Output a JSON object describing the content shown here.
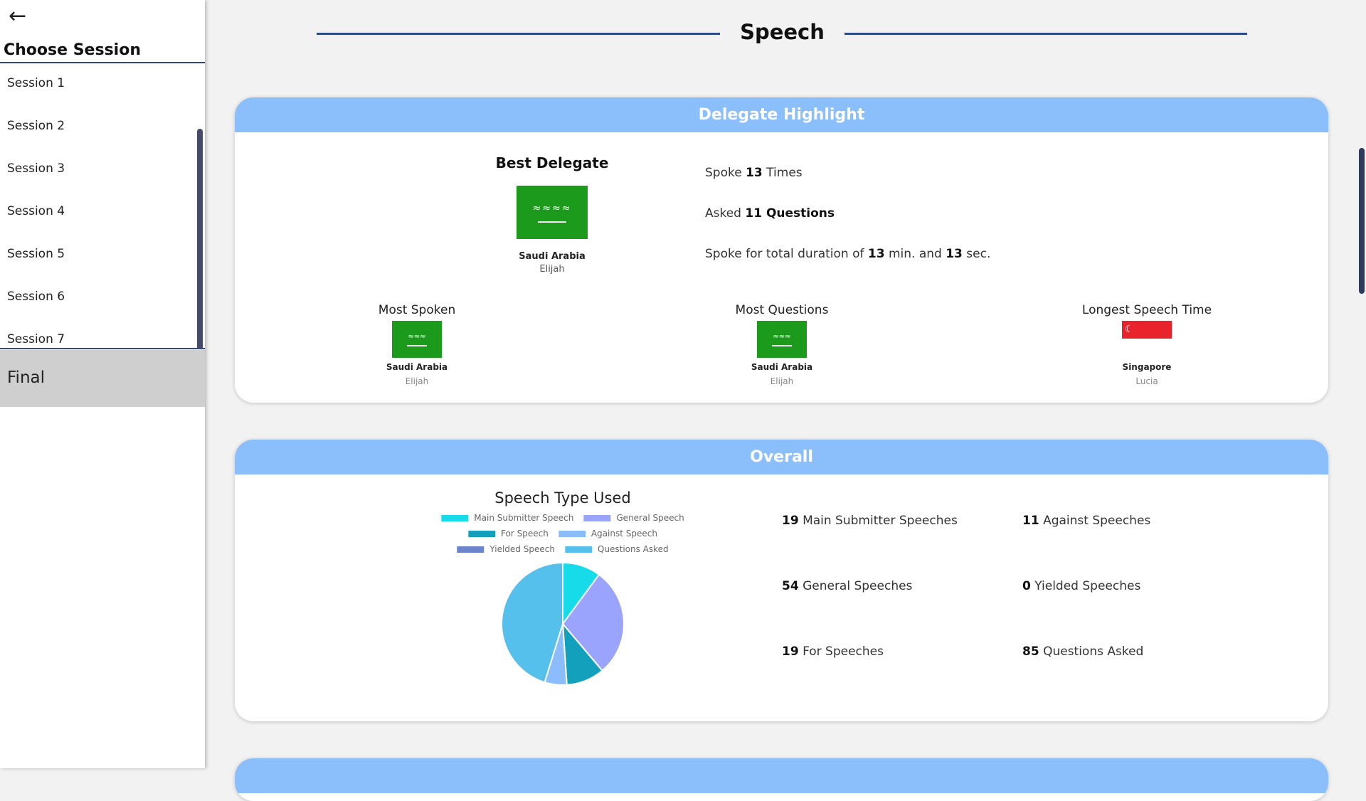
{
  "sidebar": {
    "back_icon": "arrow-left-icon",
    "heading": "Choose Session",
    "sessions": [
      "Session 1",
      "Session 2",
      "Session 3",
      "Session 4",
      "Session 5",
      "Session 6",
      "Session 7"
    ],
    "selected": "Final"
  },
  "page": {
    "title": "Speech"
  },
  "highlight": {
    "header": "Delegate Highlight",
    "best": {
      "label": "Best Delegate",
      "country": "Saudi Arabia",
      "delegate": "Elijah"
    },
    "stats": {
      "spoke_pre": "Spoke ",
      "spoke_n": "13",
      "spoke_post": " Times",
      "asked_pre": "Asked ",
      "asked_n": "11 Questions",
      "dur_pre": "Spoke for total duration of ",
      "dur_min": "13",
      "dur_mid": " min. and ",
      "dur_sec": "13",
      "dur_post": " sec."
    },
    "awards": [
      {
        "label": "Most Spoken",
        "country": "Saudi Arabia",
        "delegate": "Elijah"
      },
      {
        "label": "Most Questions",
        "country": "Saudi Arabia",
        "delegate": "Elijah"
      },
      {
        "label": "Longest Speech Time",
        "country": "Singapore",
        "delegate": "Lucia"
      }
    ]
  },
  "overall": {
    "header": "Overall",
    "stats": [
      {
        "n": "19",
        "label": " Main Submitter Speeches"
      },
      {
        "n": "11",
        "label": " Against Speeches"
      },
      {
        "n": "54",
        "label": " General Speeches"
      },
      {
        "n": "0",
        "label": " Yielded Speeches"
      },
      {
        "n": "19",
        "label": " For Speeches"
      },
      {
        "n": "85",
        "label": " Questions Asked"
      }
    ]
  },
  "chart_data": {
    "type": "pie",
    "title": "Speech Type Used",
    "legend": "top",
    "categories": [
      "Main Submitter Speech",
      "General Speech",
      "For Speech",
      "Against Speech",
      "Yielded Speech",
      "Questions Asked"
    ],
    "values": [
      19,
      54,
      19,
      11,
      0,
      85
    ],
    "colors": [
      "#17dbe8",
      "#9aa4fc",
      "#12a0bd",
      "#8bbdfc",
      "#6b84cc",
      "#55c0ec"
    ]
  }
}
